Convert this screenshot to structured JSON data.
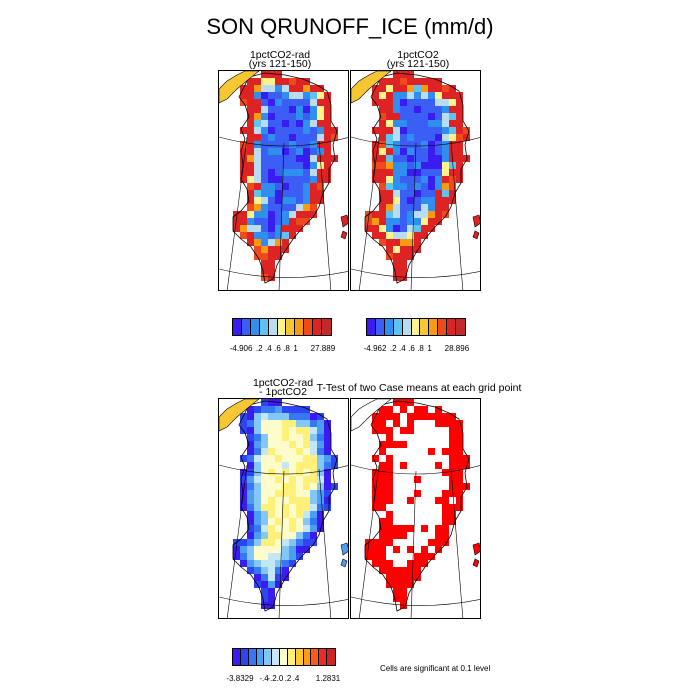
{
  "title": "SON QRUNOFF_ICE (mm/d)",
  "panels": [
    {
      "id": "p1",
      "title_lines": [
        "1pctCO2-rad",
        "(yrs 121-150)"
      ],
      "field": "case1"
    },
    {
      "id": "p2",
      "title_lines": [
        "1pctCO2",
        "(yrs 121-150)"
      ],
      "field": "case2"
    },
    {
      "id": "p3",
      "title_lines": [
        "1pctCO2-rad",
        "- 1pctCO2"
      ],
      "field": "diff"
    },
    {
      "id": "p4",
      "title_lines": [
        "T-Test of two Case means at each grid point"
      ],
      "field": "ttest"
    }
  ],
  "colorbars": [
    {
      "id": "cb1",
      "colors": [
        "#3a1cf0",
        "#3b5ff5",
        "#2f8fee",
        "#5fc3f2",
        "#b8dcf0",
        "#fff38c",
        "#f7c733",
        "#f79b14",
        "#ef4a1e",
        "#dd2323",
        "#c22a2a"
      ],
      "labels": [
        "-4.906",
        ".2",
        ".4",
        ".6",
        ".8",
        "1",
        "27.889"
      ]
    },
    {
      "id": "cb2",
      "colors": [
        "#3a1cf0",
        "#3b5ff5",
        "#2f8fee",
        "#5fc3f2",
        "#b8dcf0",
        "#fff38c",
        "#f7c733",
        "#f79b14",
        "#ef4a1e",
        "#dd2323",
        "#c22a2a"
      ],
      "labels": [
        "-4.962",
        ".2",
        ".4",
        ".6",
        ".8",
        "1",
        "28.896"
      ]
    },
    {
      "id": "cb3",
      "colors": [
        "#3a1cf0",
        "#2e45f2",
        "#3777f3",
        "#4b9ef1",
        "#82c7f5",
        "#c5e7f5",
        "#fffccc",
        "#fff07a",
        "#ffc830",
        "#ff9a1a",
        "#ff5a1a",
        "#ee2b22",
        "#d22323"
      ],
      "labels": [
        "-3.8329",
        "-.4",
        "-.2",
        ".0",
        ".2",
        ".4",
        "1.2831"
      ]
    }
  ],
  "significance_note": "Cells are significant at 0.1 level",
  "chart_data": [
    {
      "type": "heatmap",
      "title": "1pctCO2-rad (yrs 121-150)",
      "region": "Greenland",
      "colorbar": {
        "min": -4.906,
        "max": 27.889,
        "ticks": [
          -4.906,
          0.2,
          0.4,
          0.6,
          0.8,
          1,
          27.889
        ]
      },
      "pattern": "interior ice sheet near 0 (blue), margins high runoff (red)"
    },
    {
      "type": "heatmap",
      "title": "1pctCO2 (yrs 121-150)",
      "region": "Greenland",
      "colorbar": {
        "min": -4.962,
        "max": 28.896,
        "ticks": [
          -4.962,
          0.2,
          0.4,
          0.6,
          0.8,
          1,
          28.896
        ]
      },
      "pattern": "interior ice sheet near 0 (blue), margins high runoff (red)"
    },
    {
      "type": "heatmap",
      "title": "1pctCO2-rad - 1pctCO2",
      "region": "Greenland",
      "colorbar": {
        "min": -3.8329,
        "max": 1.2831,
        "ticks": [
          -3.8329,
          -0.4,
          -0.2,
          0.0,
          0.2,
          0.4,
          1.2831
        ]
      },
      "pattern": "interior slightly positive (yellow), margins strongly negative (blue)"
    },
    {
      "type": "heatmap",
      "title": "T-Test of two Case means at each grid point",
      "region": "Greenland",
      "legend": "Cells are significant at 0.1 level",
      "pattern": "margins significant (red), interior largely not significant"
    }
  ]
}
